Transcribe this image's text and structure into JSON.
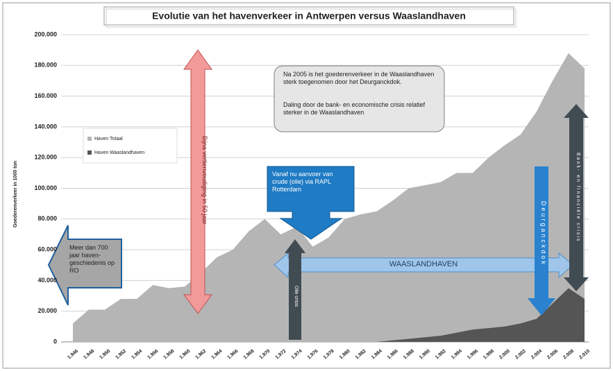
{
  "chart_data": {
    "type": "area",
    "title": "Evolutie van het havenverkeer in Antwerpen  versus Waaslandhaven",
    "y_label": "Goederenverkeer in 1000 ton",
    "categories": [
      "1.946",
      "1.948",
      "1.950",
      "1.952",
      "1.954",
      "1.956",
      "1.958",
      "1.960",
      "1.962",
      "1.964",
      "1.966",
      "1.968",
      "1.970",
      "1.972",
      "1.974",
      "1.976",
      "1.978",
      "1.980",
      "1.982",
      "1.984",
      "1.986",
      "1.988",
      "1.990",
      "1.992",
      "1.994",
      "1.996",
      "1.998",
      "2.000",
      "2.002",
      "2.004",
      "2.006",
      "2.008",
      "2.010"
    ],
    "series": [
      {
        "name": "Haven Totaal",
        "color": "#b5b5b5",
        "values": [
          12000,
          21000,
          21000,
          28000,
          28000,
          37000,
          35000,
          36000,
          45000,
          55000,
          60000,
          72000,
          80000,
          70000,
          75000,
          62000,
          68000,
          80000,
          83000,
          85000,
          92000,
          100000,
          102000,
          104000,
          110000,
          110000,
          120000,
          128000,
          135000,
          150000,
          170000,
          188000,
          178000
        ]
      },
      {
        "name": "Haven Waaslandhaven",
        "color": "#555555",
        "values": [
          0,
          0,
          0,
          0,
          0,
          0,
          0,
          0,
          0,
          0,
          0,
          0,
          0,
          0,
          0,
          0,
          0,
          0,
          0,
          0,
          1000,
          2000,
          3000,
          4000,
          6000,
          8000,
          9000,
          10000,
          12000,
          15000,
          25000,
          35000,
          28000
        ]
      }
    ],
    "ylim": [
      0,
      200000
    ],
    "yticks": [
      0,
      {
        "value": 20000,
        "label": "20.000"
      },
      {
        "value": 40000,
        "label": "40.000"
      },
      {
        "value": 60000,
        "label": "60.000"
      },
      {
        "value": 80000,
        "label": "80.000"
      },
      {
        "value": 100000,
        "label": "100.000"
      },
      {
        "value": 120000,
        "label": "120.000"
      },
      {
        "value": 140000,
        "label": "140.000"
      },
      {
        "value": 160000,
        "label": "160.000"
      },
      {
        "value": 180000,
        "label": "180.000"
      },
      {
        "value": 200000,
        "label": "200.000"
      }
    ],
    "grid": true,
    "annotations": [
      "Bijna vertienvoudiging in 50 jaar",
      "Na 2005 is het goederenverkeer in de Waaslandhaven sterk toegenomen door het Deurganckdok.",
      "Daling door de bank- en economische crisis relatief sterker in de Waaslandhaven",
      "Vanaf nu aanvoer van crude (olie) via RAPL Rotterdam",
      "Meer dan 700 jaar haven-geschiedenis op RO",
      "Olie crisis",
      "WAASLANDHAVEN",
      "Deurganckdok",
      "Bank- en financiële crisis"
    ]
  }
}
